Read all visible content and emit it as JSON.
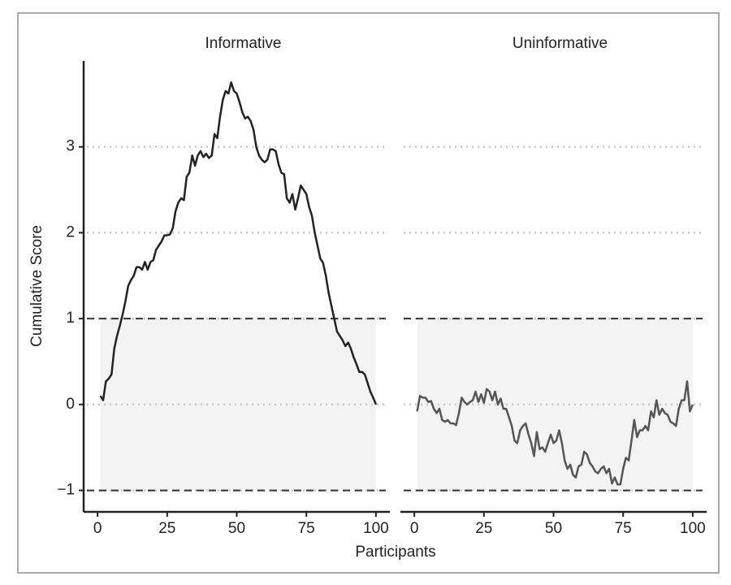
{
  "xlabel": "Participants",
  "ylabel": "Cumulative Score",
  "ylim": [
    -1.25,
    4
  ],
  "yticks": [
    {
      "value": -1,
      "label": "−1"
    },
    0,
    1,
    2,
    3
  ],
  "grid": true,
  "reference_lines": [
    1,
    -1
  ],
  "shaded_range": [
    -1,
    1
  ],
  "chart_data": [
    {
      "type": "line",
      "title": "Informative",
      "color": "#222222",
      "xlim": [
        -5,
        105
      ],
      "xticks": [
        0,
        25,
        50,
        75,
        100
      ],
      "x": [
        1,
        2,
        3,
        4,
        5,
        6,
        7,
        8,
        9,
        10,
        11,
        12,
        13,
        14,
        15,
        16,
        17,
        18,
        19,
        20,
        21,
        22,
        23,
        24,
        25,
        26,
        27,
        28,
        29,
        30,
        31,
        32,
        33,
        34,
        35,
        36,
        37,
        38,
        39,
        40,
        41,
        42,
        43,
        44,
        45,
        46,
        47,
        48,
        49,
        50,
        51,
        52,
        53,
        54,
        55,
        56,
        57,
        58,
        59,
        60,
        61,
        62,
        63,
        64,
        65,
        66,
        67,
        68,
        69,
        70,
        71,
        72,
        73,
        74,
        75,
        76,
        77,
        78,
        79,
        80,
        81,
        82,
        83,
        84,
        85,
        86,
        87,
        88,
        89,
        90,
        91,
        92,
        93,
        94,
        95,
        96,
        97,
        98,
        99,
        100
      ],
      "values": [
        0.1,
        0.05,
        0.27,
        0.3,
        0.35,
        0.65,
        0.8,
        0.92,
        1.05,
        1.2,
        1.38,
        1.45,
        1.5,
        1.6,
        1.6,
        1.57,
        1.66,
        1.57,
        1.66,
        1.68,
        1.8,
        1.85,
        1.9,
        1.97,
        1.97,
        1.98,
        2.05,
        2.25,
        2.35,
        2.4,
        2.38,
        2.65,
        2.7,
        2.9,
        2.78,
        2.9,
        2.95,
        2.88,
        2.92,
        2.87,
        2.9,
        3.15,
        3.1,
        3.35,
        3.55,
        3.65,
        3.62,
        3.75,
        3.65,
        3.62,
        3.52,
        3.4,
        3.33,
        3.35,
        3.3,
        3.2,
        3.0,
        2.9,
        2.85,
        2.82,
        2.85,
        2.97,
        2.97,
        2.95,
        2.8,
        2.7,
        2.68,
        2.4,
        2.35,
        2.45,
        2.27,
        2.4,
        2.55,
        2.5,
        2.45,
        2.3,
        2.2,
        2.0,
        1.85,
        1.7,
        1.65,
        1.5,
        1.3,
        1.15,
        1.0,
        0.85,
        0.8,
        0.75,
        0.68,
        0.72,
        0.65,
        0.55,
        0.47,
        0.38,
        0.38,
        0.35,
        0.25,
        0.15,
        0.08,
        0.0
      ]
    },
    {
      "type": "line",
      "title": "Uninformative",
      "color": "#555555",
      "xlim": [
        -5,
        105
      ],
      "xticks": [
        0,
        25,
        50,
        75,
        100
      ],
      "x": [
        1,
        2,
        3,
        4,
        5,
        6,
        7,
        8,
        9,
        10,
        11,
        12,
        13,
        14,
        15,
        16,
        17,
        18,
        19,
        20,
        21,
        22,
        23,
        24,
        25,
        26,
        27,
        28,
        29,
        30,
        31,
        32,
        33,
        34,
        35,
        36,
        37,
        38,
        39,
        40,
        41,
        42,
        43,
        44,
        45,
        46,
        47,
        48,
        49,
        50,
        51,
        52,
        53,
        54,
        55,
        56,
        57,
        58,
        59,
        60,
        61,
        62,
        63,
        64,
        65,
        66,
        67,
        68,
        69,
        70,
        71,
        72,
        73,
        74,
        75,
        76,
        77,
        78,
        79,
        80,
        81,
        82,
        83,
        84,
        85,
        86,
        87,
        88,
        89,
        90,
        91,
        92,
        93,
        94,
        95,
        96,
        97,
        98,
        99,
        100
      ],
      "values": [
        -0.08,
        0.1,
        0.08,
        0.08,
        0.03,
        0.04,
        -0.05,
        -0.1,
        -0.05,
        -0.18,
        -0.2,
        -0.18,
        -0.22,
        -0.22,
        -0.24,
        -0.1,
        0.08,
        0.03,
        0.0,
        0.03,
        0.05,
        0.15,
        0.03,
        0.12,
        0.02,
        0.18,
        0.15,
        0.05,
        0.15,
        0.0,
        0.07,
        -0.05,
        -0.05,
        -0.15,
        -0.25,
        -0.42,
        -0.45,
        -0.3,
        -0.25,
        -0.22,
        -0.35,
        -0.45,
        -0.6,
        -0.32,
        -0.52,
        -0.5,
        -0.55,
        -0.45,
        -0.35,
        -0.45,
        -0.42,
        -0.3,
        -0.45,
        -0.65,
        -0.75,
        -0.7,
        -0.82,
        -0.85,
        -0.72,
        -0.7,
        -0.55,
        -0.58,
        -0.68,
        -0.72,
        -0.78,
        -0.8,
        -0.75,
        -0.72,
        -0.8,
        -0.75,
        -0.92,
        -0.85,
        -0.93,
        -0.93,
        -0.75,
        -0.62,
        -0.65,
        -0.42,
        -0.18,
        -0.38,
        -0.3,
        -0.3,
        -0.25,
        -0.3,
        -0.08,
        -0.15,
        0.05,
        -0.12,
        -0.05,
        -0.1,
        -0.12,
        -0.2,
        -0.22,
        -0.25,
        -0.05,
        0.05,
        0.05,
        0.27,
        -0.08,
        0.0
      ]
    }
  ]
}
